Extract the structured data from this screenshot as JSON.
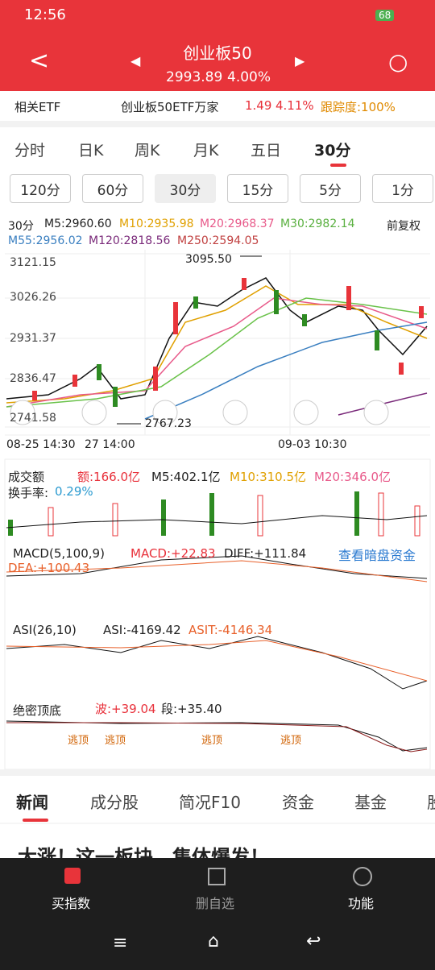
{
  "status": {
    "time": "12:56",
    "battery": "68"
  },
  "header": {
    "title": "创业板50",
    "price": "2993.89",
    "change": "4.00%"
  },
  "etf": {
    "label": "相关ETF",
    "name": "创业板50ETF万家",
    "price": "1.49",
    "change": "4.11%",
    "tracking": "跟踪度:100%"
  },
  "tabs": [
    "分时",
    "日K",
    "周K",
    "月K",
    "五日",
    "30分"
  ],
  "intervals": [
    "120分",
    "60分",
    "30分",
    "15分",
    "5分",
    "1分"
  ],
  "legend": {
    "period": "30分",
    "m5": "M5:2960.60",
    "m10": "M10:2935.98",
    "m20": "M20:2968.37",
    "m30": "M30:2982.14",
    "adjust": "前复权",
    "m55": "M55:2956.02",
    "m120": "M120:2818.56",
    "m250": "M250:2594.05"
  },
  "price_axis": [
    "3121.15",
    "3026.26",
    "2931.37",
    "2836.47",
    "2741.58"
  ],
  "annotations": {
    "high": "3095.50",
    "low": "2767.23"
  },
  "time_axis": [
    "08-25 14:30",
    "27 14:00",
    "09-03 10:30"
  ],
  "volume": {
    "label": "成交额",
    "amount": "额:166.0亿",
    "m5": "M5:402.1亿",
    "m10": "M10:310.5亿",
    "m20": "M20:346.0亿",
    "turnover_label": "换手率:",
    "turnover": "0.29%"
  },
  "macd": {
    "label": "MACD(5,100,9)",
    "macd": "MACD:+22.83",
    "diff": "DIFF:+111.84",
    "link": "查看暗盘资金",
    "dea": "DEA:+100.43"
  },
  "asi": {
    "label": "ASI(26,10)",
    "asi": "ASI:-4169.42",
    "asit": "ASIT:-4146.34"
  },
  "topbottom": {
    "label": "绝密顶底",
    "wave": "波:+39.04",
    "segment": "段:+35.40",
    "marks": [
      "逃顶",
      "逃顶",
      "逃顶",
      "逃顶"
    ]
  },
  "news_tabs": [
    "新闻",
    "成分股",
    "简况F10",
    "资金",
    "基金",
    "股"
  ],
  "news": {
    "headline": "大涨！这一板块，集体爆发！"
  },
  "bottom_nav": [
    "买指数",
    "删自选",
    "功能"
  ]
}
